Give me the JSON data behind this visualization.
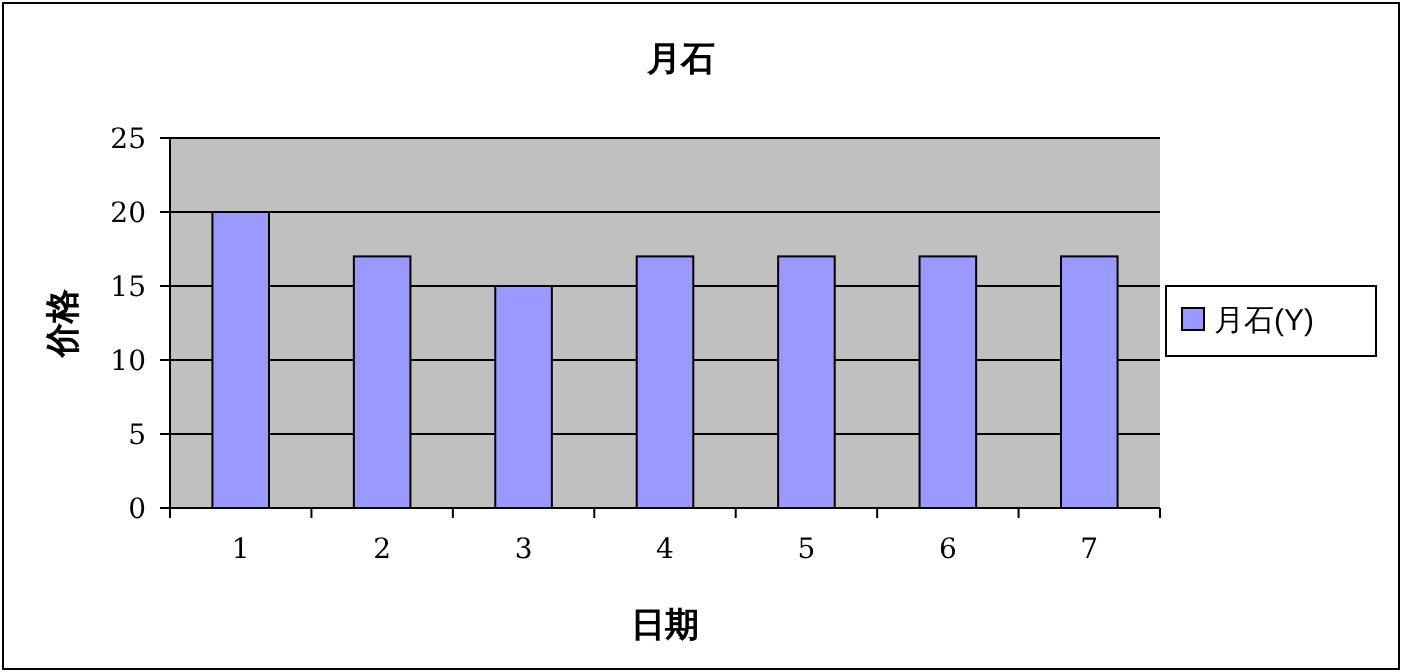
{
  "chart_data": {
    "type": "bar",
    "title": "月石",
    "xlabel": "日期",
    "ylabel": "价格",
    "categories": [
      "1",
      "2",
      "3",
      "4",
      "5",
      "6",
      "7"
    ],
    "series": [
      {
        "name": "月石(Y)",
        "color": "#9999ff",
        "values": [
          20,
          17,
          15,
          17,
          17,
          17,
          17
        ]
      }
    ],
    "ylim": [
      0,
      25
    ],
    "yticks": [
      0,
      5,
      10,
      15,
      20,
      25
    ],
    "grid": "y",
    "legend": "right"
  }
}
